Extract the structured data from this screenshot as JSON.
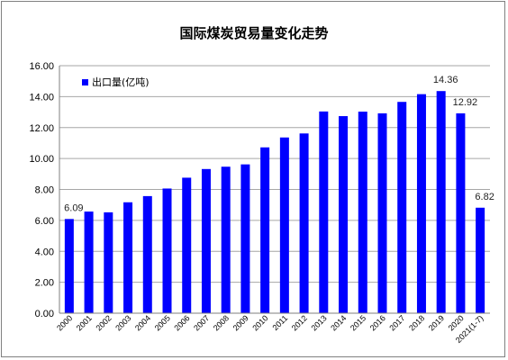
{
  "chart_data": {
    "type": "bar",
    "title": "国际煤炭贸易量变化走势",
    "categories": [
      "2000",
      "2001",
      "2002",
      "2003",
      "2004",
      "2005",
      "2006",
      "2007",
      "2008",
      "2009",
      "2010",
      "2011",
      "2012",
      "2013",
      "2014",
      "2015",
      "2016",
      "2017",
      "2018",
      "2019",
      "2020",
      "2021(1-7)"
    ],
    "series": [
      {
        "name": "出口量(亿吨)",
        "color": "#0000ff",
        "values": [
          6.09,
          6.57,
          6.52,
          7.17,
          7.57,
          8.06,
          8.76,
          9.32,
          9.47,
          9.62,
          10.72,
          11.36,
          11.62,
          13.04,
          12.74,
          13.03,
          12.92,
          13.66,
          14.16,
          14.36,
          12.92,
          6.82
        ]
      }
    ],
    "data_labels": [
      {
        "index": 0,
        "text": "6.09"
      },
      {
        "index": 19,
        "text": "14.36"
      },
      {
        "index": 20,
        "text": "12.92"
      },
      {
        "index": 21,
        "text": "6.82"
      }
    ],
    "yticks": [
      "0.00",
      "2.00",
      "4.00",
      "6.00",
      "8.00",
      "10.00",
      "12.00",
      "14.00",
      "16.00"
    ],
    "ylim": [
      0,
      16
    ],
    "grid": true,
    "legend_position": "top-left",
    "xlabel": "",
    "ylabel": ""
  }
}
